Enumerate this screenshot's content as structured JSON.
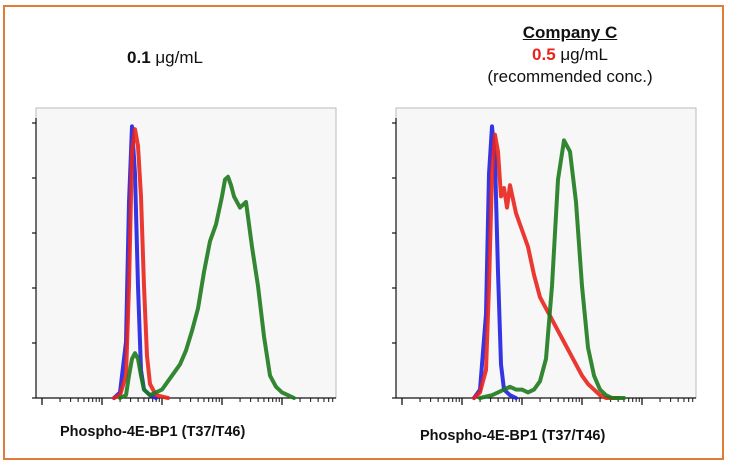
{
  "headers": {
    "left": {
      "value": "0.1",
      "unit": " μg/mL"
    },
    "right": {
      "company": "Company C",
      "value": "0.5",
      "unit": " μg/mL",
      "note": "(recommended conc.)"
    }
  },
  "colors": {
    "frame": "#e07b39",
    "blue": "#1f1fe0",
    "red": "#e8231c",
    "green": "#1d7a1d",
    "highlight": "#e8231c"
  },
  "chart_data": [
    {
      "type": "line",
      "xlabel": "Phospho-4E-BP1 (T37/T46)",
      "ylabel": "",
      "xlim": [
        0,
        100
      ],
      "ylim": [
        0,
        100
      ],
      "series": [
        {
          "color": "blue",
          "x": [
            26,
            28,
            30,
            31,
            32,
            33,
            34,
            35,
            36,
            38,
            40
          ],
          "y": [
            0,
            2,
            20,
            70,
            97,
            80,
            40,
            10,
            3,
            1,
            0
          ]
        },
        {
          "color": "red",
          "x": [
            26,
            28,
            30,
            31,
            32,
            33,
            34,
            35,
            36,
            37,
            38,
            40,
            44
          ],
          "y": [
            0,
            1,
            8,
            40,
            88,
            96,
            90,
            72,
            40,
            15,
            5,
            1,
            0
          ]
        },
        {
          "color": "green",
          "x": [
            28,
            30,
            31,
            32,
            33,
            34,
            35,
            36,
            38,
            40,
            42,
            44,
            46,
            48,
            50,
            52,
            54,
            56,
            58,
            60,
            62,
            63,
            64,
            65,
            66,
            68,
            70,
            72,
            74,
            76,
            78,
            80,
            82,
            84,
            86
          ],
          "y": [
            0,
            1,
            8,
            14,
            16,
            14,
            8,
            3,
            1,
            2,
            3,
            6,
            9,
            12,
            17,
            24,
            32,
            45,
            56,
            62,
            72,
            78,
            79,
            76,
            72,
            68,
            70,
            54,
            40,
            22,
            8,
            4,
            2,
            1,
            0
          ]
        }
      ]
    },
    {
      "type": "line",
      "xlabel": "Phospho-4E-BP1 (T37/T46)",
      "ylabel": "",
      "xlim": [
        0,
        100
      ],
      "ylim": [
        0,
        100
      ],
      "series": [
        {
          "color": "blue",
          "x": [
            26,
            28,
            30,
            31,
            32,
            33,
            34,
            35,
            36,
            38,
            40
          ],
          "y": [
            0,
            3,
            30,
            80,
            97,
            85,
            45,
            12,
            3,
            1,
            0
          ]
        },
        {
          "color": "red",
          "x": [
            26,
            28,
            30,
            31,
            32,
            33,
            34,
            35,
            36,
            37,
            38,
            40,
            42,
            44,
            46,
            48,
            50,
            52,
            54,
            56,
            58,
            60,
            62,
            64,
            66,
            68,
            70,
            72,
            74
          ],
          "y": [
            0,
            2,
            10,
            40,
            80,
            94,
            88,
            72,
            75,
            68,
            76,
            66,
            60,
            54,
            44,
            36,
            32,
            28,
            24,
            20,
            16,
            12,
            8,
            5,
            3,
            1,
            0,
            0,
            0
          ]
        },
        {
          "color": "green",
          "x": [
            28,
            32,
            34,
            36,
            38,
            40,
            42,
            44,
            46,
            48,
            50,
            52,
            54,
            56,
            58,
            60,
            62,
            64,
            66,
            68,
            70,
            72,
            74,
            76
          ],
          "y": [
            0,
            1,
            2,
            3,
            4,
            3,
            3,
            2,
            3,
            6,
            14,
            40,
            78,
            92,
            88,
            70,
            40,
            18,
            8,
            3,
            1,
            0,
            0,
            0
          ]
        }
      ]
    }
  ]
}
